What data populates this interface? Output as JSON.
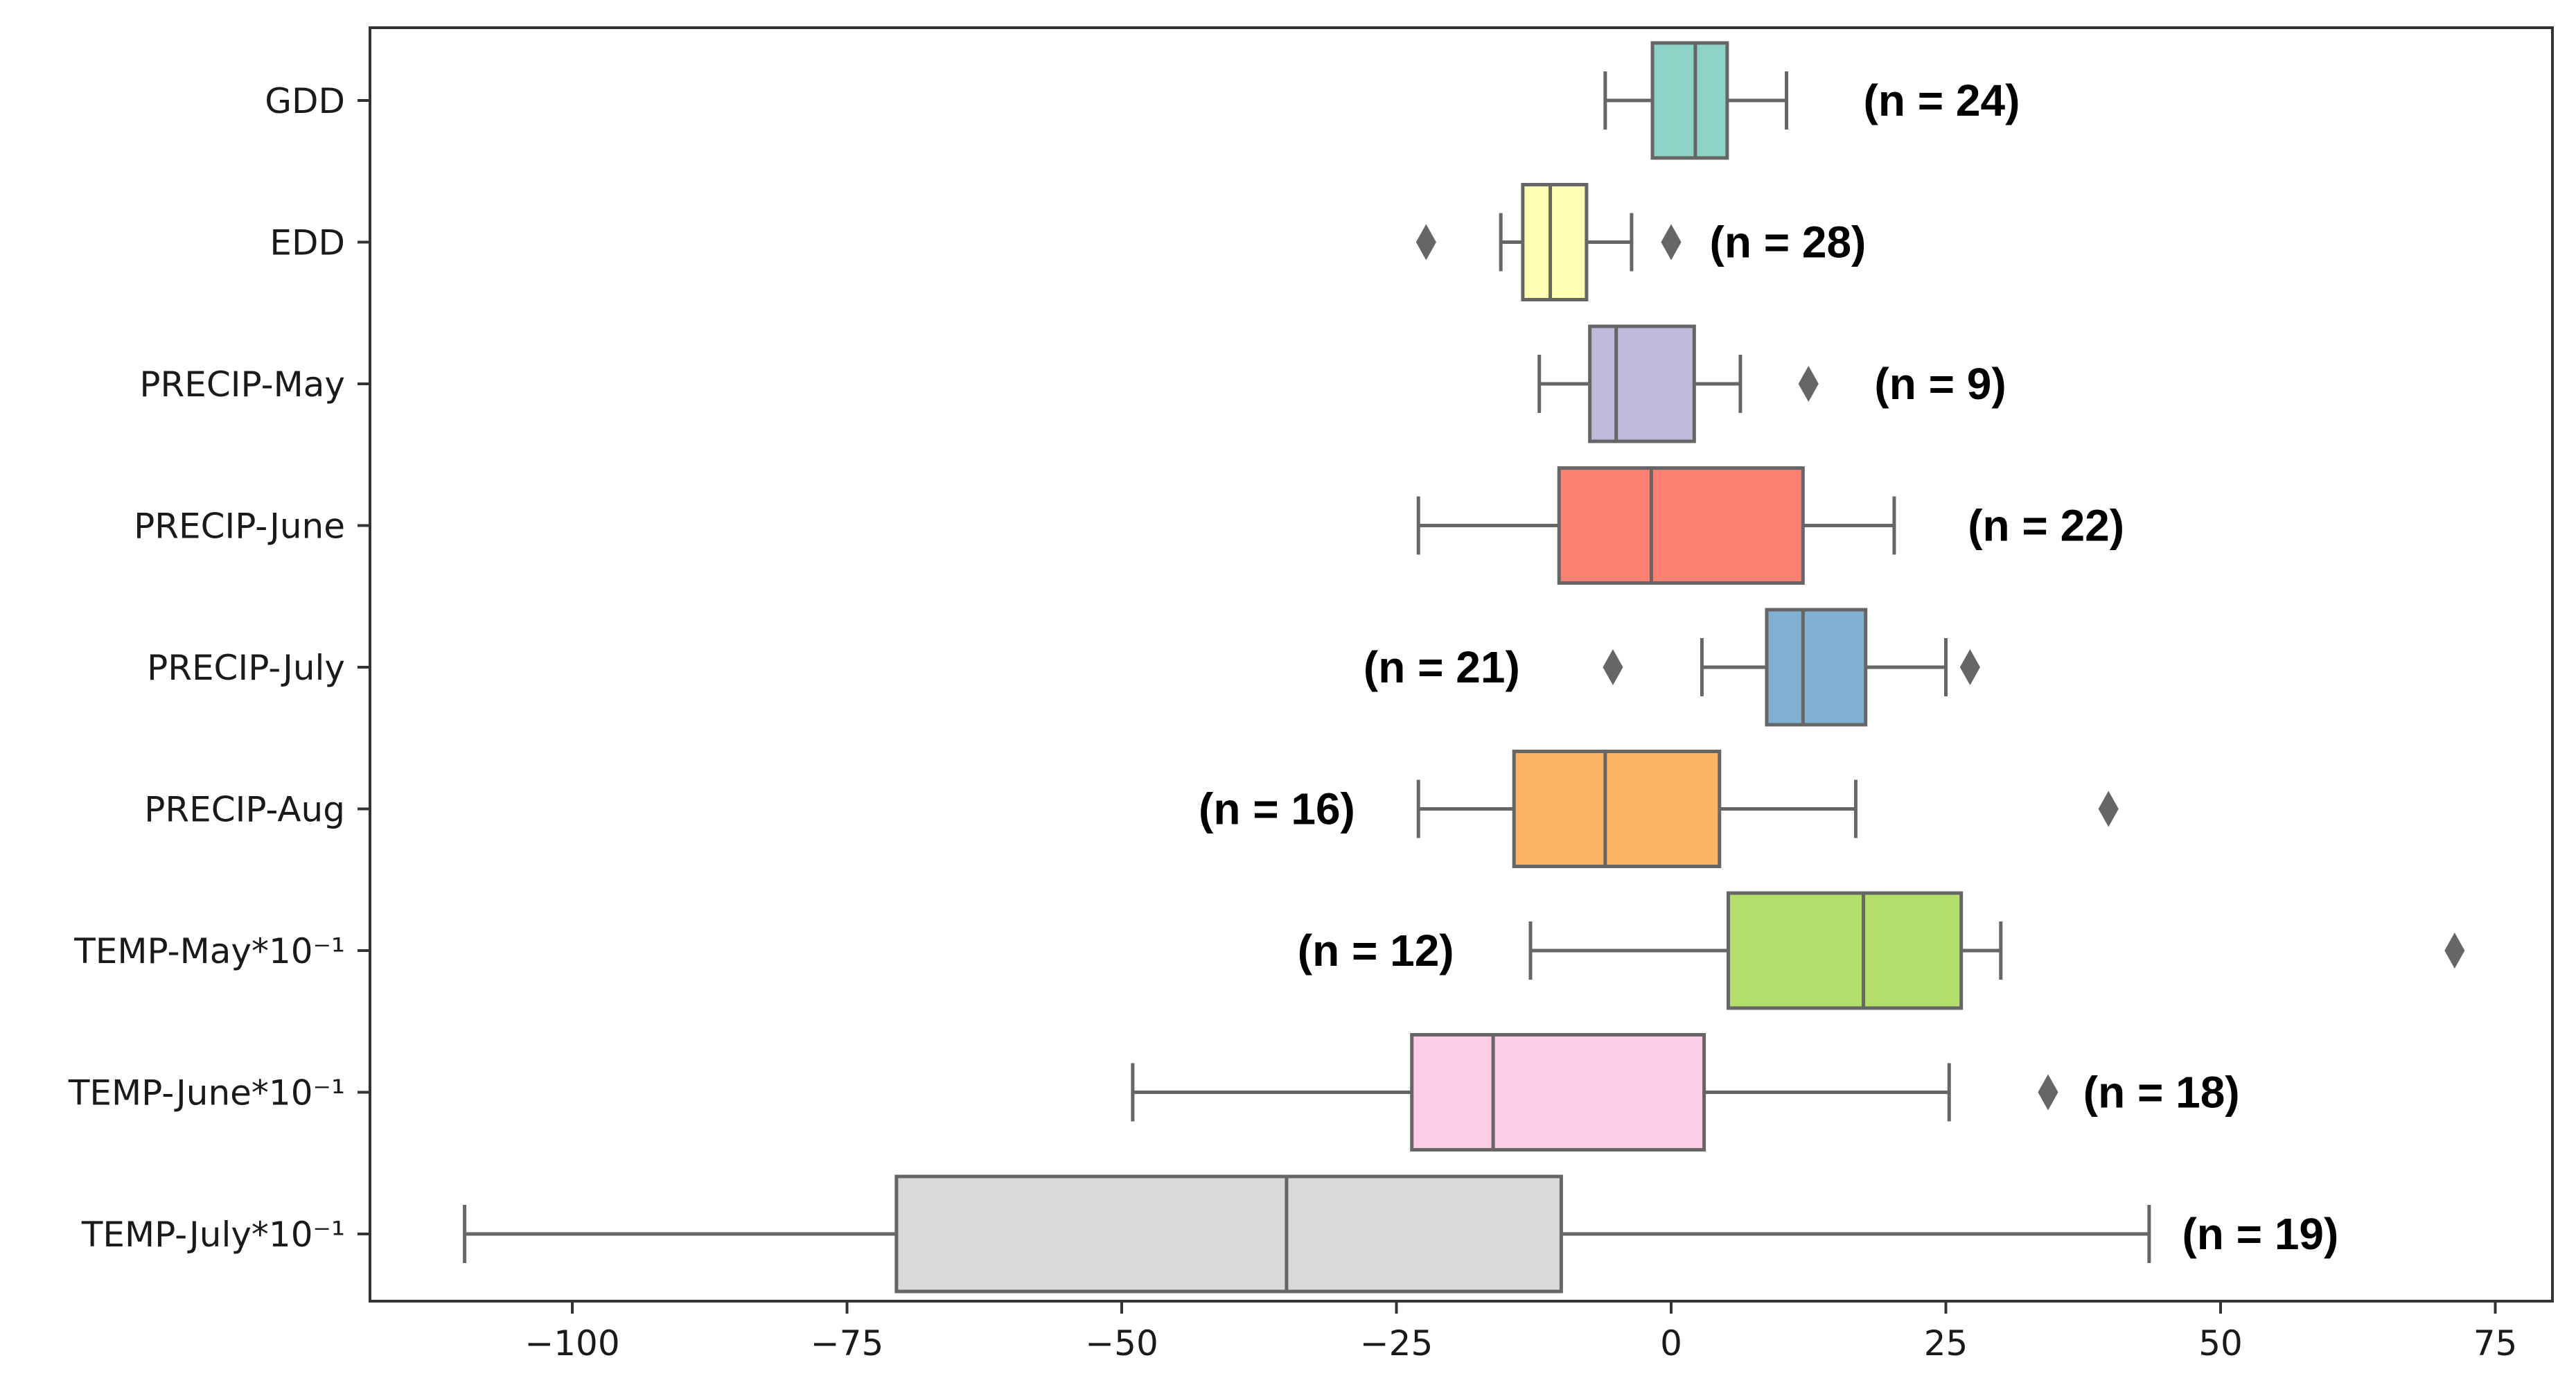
{
  "chart_data": {
    "type": "boxplot",
    "orientation": "horizontal",
    "title": "",
    "xlabel": "",
    "ylabel": "",
    "xlim": [
      -120,
      80
    ],
    "xticks": [
      -100,
      -75,
      -50,
      -25,
      0,
      25,
      50,
      75
    ],
    "xtick_labels": [
      "−100",
      "−75",
      "−50",
      "−25",
      "0",
      "25",
      "50",
      "75"
    ],
    "grid": false,
    "series": [
      {
        "label": "GDD",
        "color": "#8dd3c7",
        "whisker_low": -6,
        "q1": -1.7,
        "median": 2.2,
        "q3": 5.1,
        "whisker_high": 10.5,
        "outliers": [],
        "n_label": "(n = 24)",
        "n_label_x": 17.5
      },
      {
        "label": "EDD",
        "color": "#ffffb3",
        "whisker_low": -15.5,
        "q1": -13.5,
        "median": -11,
        "q3": -7.7,
        "whisker_high": -3.6,
        "outliers": [
          -22.3,
          0
        ],
        "n_label": "(n = 28)",
        "n_label_x": 3.5
      },
      {
        "label": "PRECIP-May",
        "color": "#bebada",
        "whisker_low": -12,
        "q1": -7.4,
        "median": -5,
        "q3": 2.1,
        "whisker_high": 6.3,
        "outliers": [
          12.5
        ],
        "n_label": "(n = 9)",
        "n_label_x": 18.5
      },
      {
        "label": "PRECIP-June",
        "color": "#fb8072",
        "whisker_low": -23,
        "q1": -10.2,
        "median": -1.8,
        "q3": 12,
        "whisker_high": 20.3,
        "outliers": [],
        "n_label": "(n = 22)",
        "n_label_x": 27
      },
      {
        "label": "PRECIP-July",
        "color": "#80b1d3",
        "whisker_low": 2.8,
        "q1": 8.7,
        "median": 12,
        "q3": 17.7,
        "whisker_high": 25,
        "outliers": [
          -5.3,
          27.2
        ],
        "n_label": "(n = 21)",
        "n_label_x": -28
      },
      {
        "label": "PRECIP-Aug",
        "color": "#fdb462",
        "whisker_low": -23,
        "q1": -14.3,
        "median": -6,
        "q3": 4.4,
        "whisker_high": 16.8,
        "outliers": [
          39.8
        ],
        "n_label": "(n = 16)",
        "n_label_x": -43
      },
      {
        "label": "TEMP-May*10⁻¹",
        "color": "#b3de69",
        "whisker_low": -12.8,
        "q1": 5.2,
        "median": 17.5,
        "q3": 26.4,
        "whisker_high": 30,
        "outliers": [
          71.3
        ],
        "n_label": "(n = 12)",
        "n_label_x": -34
      },
      {
        "label": "TEMP-June*10⁻¹",
        "color": "#fccde5",
        "whisker_low": -49,
        "q1": -23.6,
        "median": -16.2,
        "q3": 3,
        "whisker_high": 25.3,
        "outliers": [
          34.3
        ],
        "n_label": "(n = 18)",
        "n_label_x": 37.5
      },
      {
        "label": "TEMP-July*10⁻¹",
        "color": "#d9d9d9",
        "whisker_low": -109.8,
        "q1": -70.5,
        "median": -35,
        "q3": -10,
        "whisker_high": 43.5,
        "outliers": [],
        "n_label": "(n = 19)",
        "n_label_x": 46.5
      }
    ]
  }
}
